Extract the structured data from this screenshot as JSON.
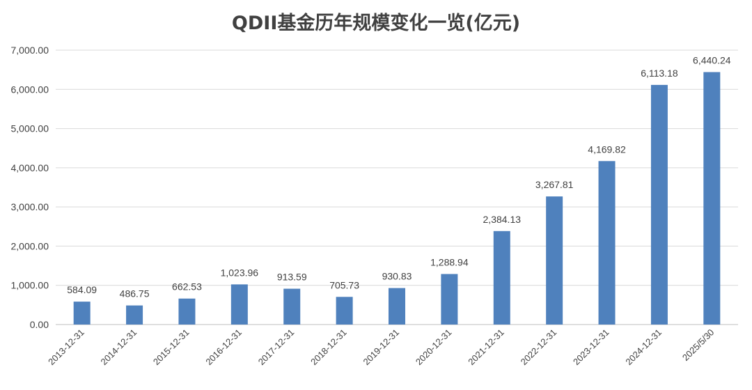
{
  "chart_data": {
    "type": "bar",
    "title": "QDII基金历年规模变化一览(亿元)",
    "categories": [
      "2013-12-31",
      "2014-12-31",
      "2015-12-31",
      "2016-12-31",
      "2017-12-31",
      "2018-12-31",
      "2019-12-31",
      "2020-12-31",
      "2021-12-31",
      "2022-12-31",
      "2023-12-31",
      "2024-12-31",
      "2025/5/30"
    ],
    "values": [
      584.09,
      486.75,
      662.53,
      1023.96,
      913.59,
      705.73,
      930.83,
      1288.94,
      2384.13,
      3267.81,
      4169.82,
      6113.18,
      6440.24
    ],
    "data_labels": [
      "584.09",
      "486.75",
      "662.53",
      "1,023.96",
      "913.59",
      "705.73",
      "930.83",
      "1,288.94",
      "2,384.13",
      "3,267.81",
      "4,169.82",
      "6,113.18",
      "6,440.24"
    ],
    "ylim": [
      0,
      7000
    ],
    "yticks": [
      0,
      1000,
      2000,
      3000,
      4000,
      5000,
      6000,
      7000
    ],
    "ytick_labels": [
      "0.00",
      "1,000.00",
      "2,000.00",
      "3,000.00",
      "4,000.00",
      "5,000.00",
      "6,000.00",
      "7,000.00"
    ],
    "grid": true,
    "bar_color": "#4f81bd",
    "xlabel": "",
    "ylabel": ""
  }
}
